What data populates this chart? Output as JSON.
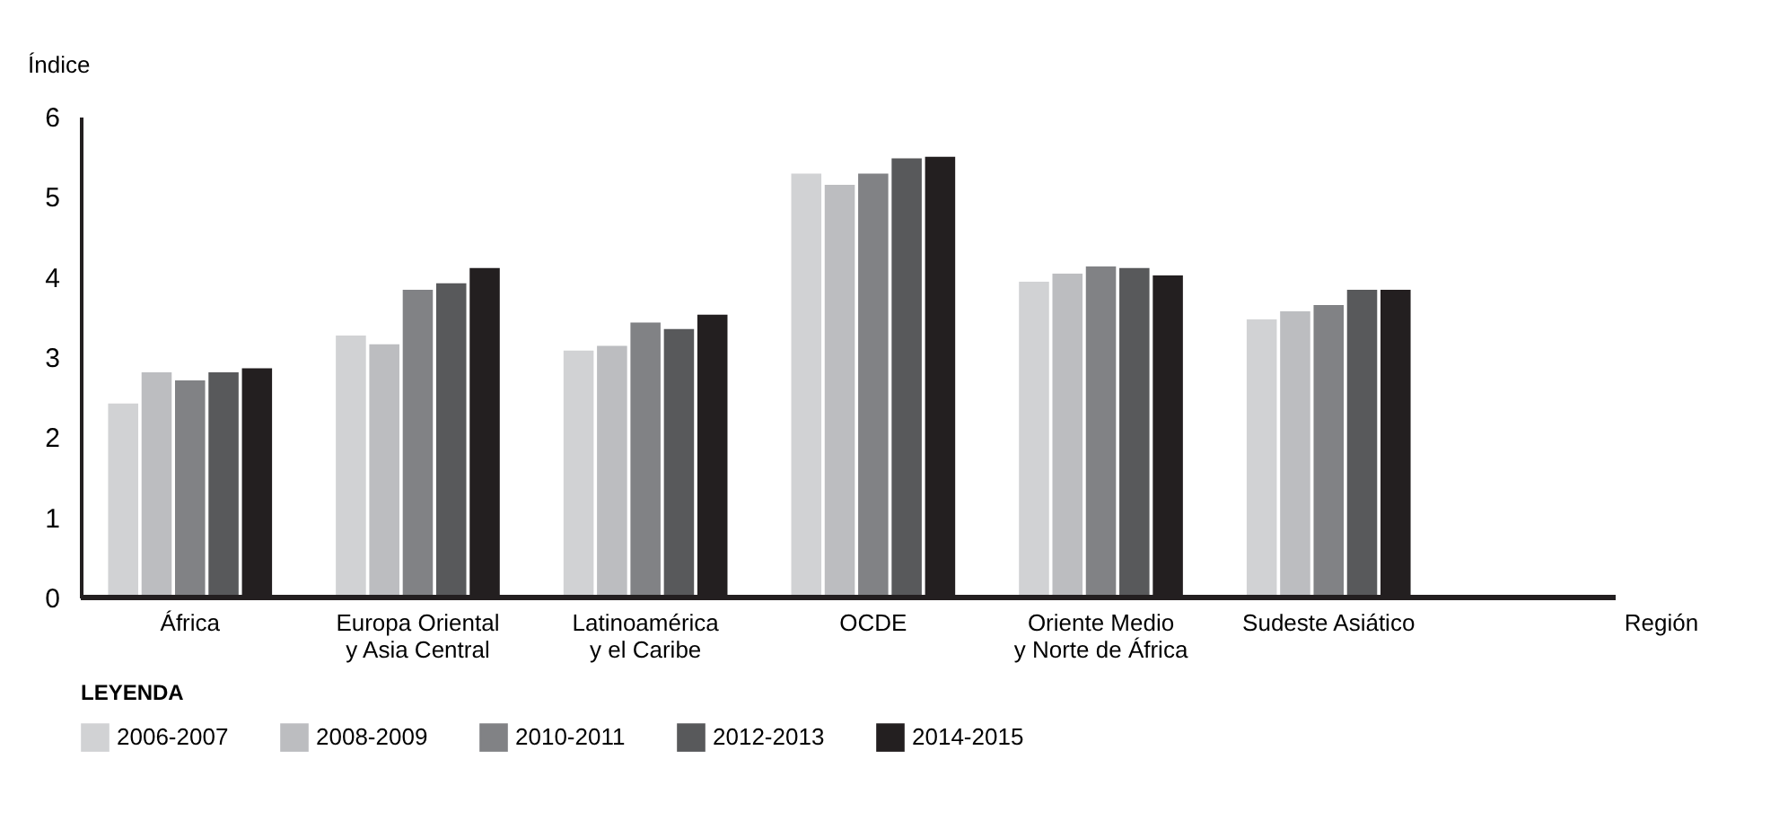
{
  "chart_data": {
    "type": "bar",
    "xlabel": "Región",
    "ylabel": "Índice",
    "legend_title": "LEYENDA",
    "categories": [
      "África",
      "Europa Oriental\ny Asia Central",
      "Latinoamérica\ny el Caribe",
      "OCDE",
      "Oriente Medio\ny Norte de África",
      "Sudeste Asiático"
    ],
    "series": [
      {
        "name": "2006-2007",
        "color": "#d1d2d4",
        "values": [
          2.42,
          3.27,
          3.08,
          5.29,
          3.94,
          3.47
        ]
      },
      {
        "name": "2008-2009",
        "color": "#bcbdc0",
        "values": [
          2.81,
          3.16,
          3.14,
          5.15,
          4.04,
          3.57
        ]
      },
      {
        "name": "2010-2011",
        "color": "#818285",
        "values": [
          2.71,
          3.84,
          3.43,
          5.29,
          4.13,
          3.65
        ]
      },
      {
        "name": "2012-2013",
        "color": "#58595b",
        "values": [
          2.81,
          3.92,
          3.35,
          5.48,
          4.11,
          3.84
        ]
      },
      {
        "name": "2014-2015",
        "color": "#231f20",
        "values": [
          2.86,
          4.11,
          3.53,
          5.5,
          4.02,
          3.84
        ]
      }
    ],
    "ylim": [
      0,
      6
    ],
    "yticks": [
      0,
      1,
      2,
      3,
      4,
      5,
      6
    ],
    "grid": false,
    "legend": "bottom"
  }
}
